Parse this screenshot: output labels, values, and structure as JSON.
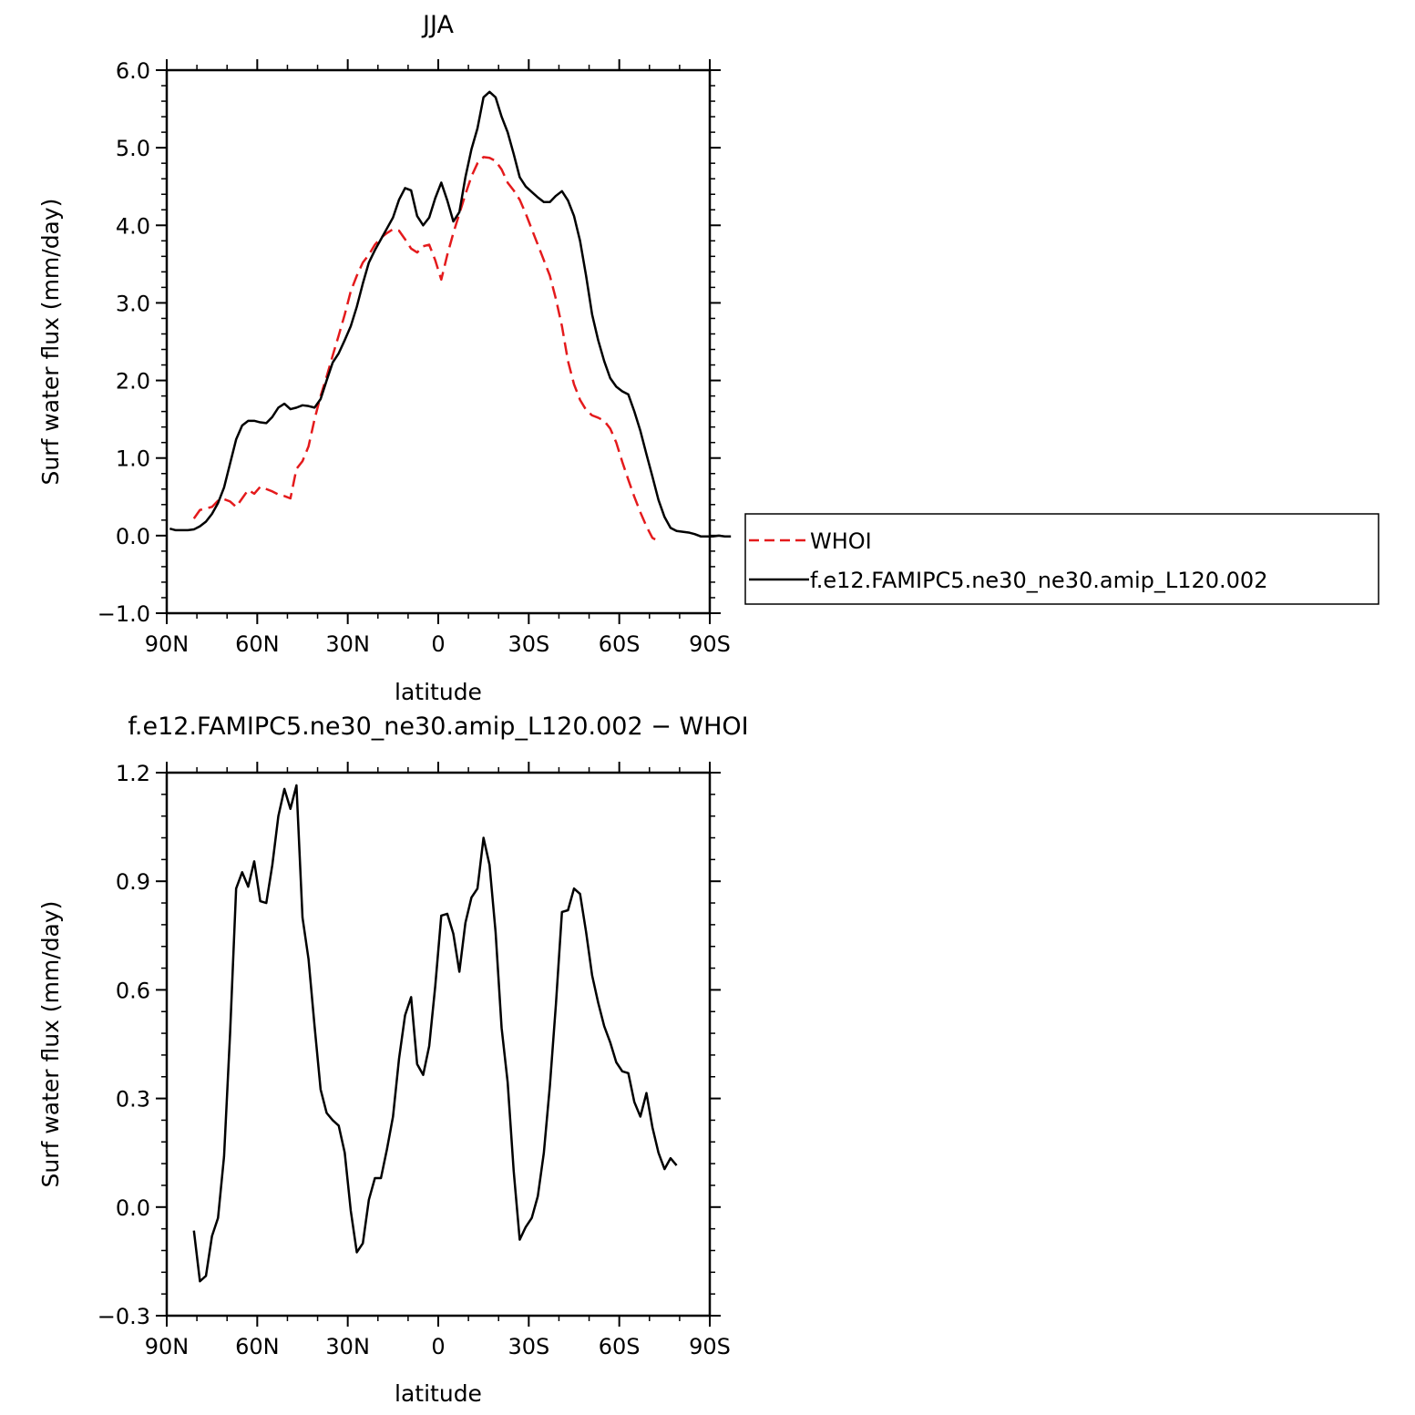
{
  "chart_data": [
    {
      "type": "line",
      "title": "JJA",
      "xlabel": "latitude",
      "ylabel": "Surf water flux (mm/day)",
      "xlim": [
        90,
        -90
      ],
      "ylim": [
        -1.0,
        6.0
      ],
      "xticks": [
        90,
        60,
        30,
        0,
        -30,
        -60,
        -90
      ],
      "xtick_labels": [
        "90N",
        "60N",
        "30N",
        "0",
        "30S",
        "60S",
        "90S"
      ],
      "yticks": [
        -1.0,
        0.0,
        1.0,
        2.0,
        3.0,
        4.0,
        5.0,
        6.0
      ],
      "ytick_labels": [
        "−1.0",
        "0.0",
        "1.0",
        "2.0",
        "3.0",
        "4.0",
        "5.0",
        "6.0"
      ],
      "legend_position": "right",
      "series": [
        {
          "name": "WHOI",
          "color": "#e41a1c",
          "dash": "dashed",
          "points": [
            [
              81,
              0.22
            ],
            [
              79,
              0.33
            ],
            [
              77,
              0.35
            ],
            [
              75,
              0.37
            ],
            [
              73,
              0.45
            ],
            [
              71,
              0.47
            ],
            [
              69,
              0.44
            ],
            [
              67,
              0.37
            ],
            [
              65,
              0.48
            ],
            [
              63,
              0.59
            ],
            [
              61,
              0.54
            ],
            [
              59,
              0.63
            ],
            [
              57,
              0.6
            ],
            [
              55,
              0.57
            ],
            [
              53,
              0.53
            ],
            [
              51,
              0.51
            ],
            [
              49,
              0.48
            ],
            [
              47,
              0.86
            ],
            [
              45,
              0.96
            ],
            [
              43,
              1.15
            ],
            [
              41,
              1.5
            ],
            [
              39,
              1.8
            ],
            [
              37,
              2.05
            ],
            [
              35,
              2.32
            ],
            [
              33,
              2.58
            ],
            [
              31,
              2.85
            ],
            [
              29,
              3.15
            ],
            [
              27,
              3.35
            ],
            [
              25,
              3.52
            ],
            [
              23,
              3.62
            ],
            [
              21,
              3.75
            ],
            [
              19,
              3.84
            ],
            [
              17,
              3.9
            ],
            [
              15,
              3.95
            ],
            [
              13,
              3.93
            ],
            [
              11,
              3.82
            ],
            [
              9,
              3.7
            ],
            [
              7,
              3.65
            ],
            [
              5,
              3.73
            ],
            [
              3,
              3.75
            ],
            [
              1,
              3.55
            ],
            [
              -1,
              3.3
            ],
            [
              -3,
              3.62
            ],
            [
              -5,
              3.9
            ],
            [
              -7,
              4.15
            ],
            [
              -9,
              4.4
            ],
            [
              -11,
              4.63
            ],
            [
              -13,
              4.8
            ],
            [
              -15,
              4.88
            ],
            [
              -17,
              4.87
            ],
            [
              -19,
              4.83
            ],
            [
              -21,
              4.72
            ],
            [
              -23,
              4.55
            ],
            [
              -25,
              4.45
            ],
            [
              -27,
              4.33
            ],
            [
              -29,
              4.15
            ],
            [
              -31,
              3.95
            ],
            [
              -33,
              3.75
            ],
            [
              -35,
              3.55
            ],
            [
              -37,
              3.35
            ],
            [
              -39,
              3.05
            ],
            [
              -41,
              2.7
            ],
            [
              -43,
              2.25
            ],
            [
              -45,
              1.95
            ],
            [
              -47,
              1.75
            ],
            [
              -49,
              1.62
            ],
            [
              -51,
              1.55
            ],
            [
              -53,
              1.52
            ],
            [
              -55,
              1.48
            ],
            [
              -57,
              1.38
            ],
            [
              -59,
              1.2
            ],
            [
              -61,
              0.95
            ],
            [
              -63,
              0.72
            ],
            [
              -65,
              0.5
            ],
            [
              -67,
              0.3
            ],
            [
              -69,
              0.12
            ],
            [
              -71,
              -0.03
            ],
            [
              -73,
              -0.07
            ]
          ]
        },
        {
          "name": "f.e12.FAMIPC5.ne30_ne30.amip_L120.002",
          "color": "#000000",
          "dash": "solid",
          "points": [
            [
              89,
              0.09
            ],
            [
              87,
              0.07
            ],
            [
              85,
              0.07
            ],
            [
              83,
              0.07
            ],
            [
              81,
              0.08
            ],
            [
              79,
              0.12
            ],
            [
              77,
              0.18
            ],
            [
              75,
              0.28
            ],
            [
              73,
              0.42
            ],
            [
              71,
              0.62
            ],
            [
              69,
              0.93
            ],
            [
              67,
              1.24
            ],
            [
              65,
              1.42
            ],
            [
              63,
              1.48
            ],
            [
              61,
              1.48
            ],
            [
              59,
              1.46
            ],
            [
              57,
              1.45
            ],
            [
              55,
              1.53
            ],
            [
              53,
              1.65
            ],
            [
              51,
              1.7
            ],
            [
              49,
              1.63
            ],
            [
              47,
              1.65
            ],
            [
              45,
              1.68
            ],
            [
              43,
              1.67
            ],
            [
              41,
              1.65
            ],
            [
              39,
              1.76
            ],
            [
              37,
              2.0
            ],
            [
              35,
              2.23
            ],
            [
              33,
              2.35
            ],
            [
              31,
              2.52
            ],
            [
              29,
              2.7
            ],
            [
              27,
              2.95
            ],
            [
              25,
              3.25
            ],
            [
              23,
              3.52
            ],
            [
              21,
              3.68
            ],
            [
              19,
              3.82
            ],
            [
              17,
              3.96
            ],
            [
              15,
              4.1
            ],
            [
              13,
              4.33
            ],
            [
              11,
              4.48
            ],
            [
              9,
              4.45
            ],
            [
              7,
              4.12
            ],
            [
              5,
              4.0
            ],
            [
              3,
              4.1
            ],
            [
              1,
              4.35
            ],
            [
              -1,
              4.55
            ],
            [
              -3,
              4.32
            ],
            [
              -5,
              4.05
            ],
            [
              -7,
              4.17
            ],
            [
              -9,
              4.62
            ],
            [
              -11,
              4.98
            ],
            [
              -13,
              5.25
            ],
            [
              -15,
              5.65
            ],
            [
              -17,
              5.72
            ],
            [
              -19,
              5.65
            ],
            [
              -21,
              5.4
            ],
            [
              -23,
              5.2
            ],
            [
              -25,
              4.92
            ],
            [
              -27,
              4.62
            ],
            [
              -29,
              4.5
            ],
            [
              -31,
              4.43
            ],
            [
              -33,
              4.36
            ],
            [
              -35,
              4.3
            ],
            [
              -37,
              4.3
            ],
            [
              -39,
              4.38
            ],
            [
              -41,
              4.44
            ],
            [
              -43,
              4.32
            ],
            [
              -45,
              4.12
            ],
            [
              -47,
              3.8
            ],
            [
              -49,
              3.35
            ],
            [
              -51,
              2.85
            ],
            [
              -53,
              2.52
            ],
            [
              -55,
              2.25
            ],
            [
              -57,
              2.03
            ],
            [
              -59,
              1.92
            ],
            [
              -61,
              1.86
            ],
            [
              -63,
              1.82
            ],
            [
              -65,
              1.6
            ],
            [
              -67,
              1.35
            ],
            [
              -69,
              1.05
            ],
            [
              -71,
              0.76
            ],
            [
              -73,
              0.46
            ],
            [
              -75,
              0.24
            ],
            [
              -77,
              0.1
            ],
            [
              -79,
              0.06
            ],
            [
              -81,
              0.05
            ],
            [
              -83,
              0.04
            ],
            [
              -85,
              0.02
            ],
            [
              -87,
              -0.01
            ],
            [
              -89,
              -0.01
            ],
            [
              -91,
              -0.01
            ],
            [
              -93,
              0.0
            ],
            [
              -95,
              -0.01
            ],
            [
              -97,
              -0.01
            ]
          ]
        }
      ]
    },
    {
      "type": "line",
      "title": "f.e12.FAMIPC5.ne30_ne30.amip_L120.002 − WHOI",
      "xlabel": "latitude",
      "ylabel": "Surf water flux (mm/day)",
      "xlim": [
        90,
        -90
      ],
      "ylim": [
        -0.3,
        1.2
      ],
      "xticks": [
        90,
        60,
        30,
        0,
        -30,
        -60,
        -90
      ],
      "xtick_labels": [
        "90N",
        "60N",
        "30N",
        "0",
        "30S",
        "60S",
        "90S"
      ],
      "yticks": [
        -0.3,
        0.0,
        0.3,
        0.6,
        0.9,
        1.2
      ],
      "ytick_labels": [
        "−0.3",
        "0.0",
        "0.3",
        "0.6",
        "0.9",
        "1.2"
      ],
      "series": [
        {
          "color": "#000000",
          "dash": "solid",
          "points": [
            [
              81,
              -0.065
            ],
            [
              79,
              -0.205
            ],
            [
              77,
              -0.19
            ],
            [
              75,
              -0.08
            ],
            [
              73,
              -0.03
            ],
            [
              71,
              0.14
            ],
            [
              69,
              0.48
            ],
            [
              67,
              0.88
            ],
            [
              65,
              0.925
            ],
            [
              63,
              0.885
            ],
            [
              61,
              0.955
            ],
            [
              59,
              0.845
            ],
            [
              57,
              0.84
            ],
            [
              55,
              0.945
            ],
            [
              53,
              1.08
            ],
            [
              51,
              1.155
            ],
            [
              49,
              1.1
            ],
            [
              47,
              1.165
            ],
            [
              45,
              0.8
            ],
            [
              43,
              0.685
            ],
            [
              41,
              0.5
            ],
            [
              39,
              0.325
            ],
            [
              37,
              0.26
            ],
            [
              35,
              0.24
            ],
            [
              33,
              0.225
            ],
            [
              31,
              0.15
            ],
            [
              29,
              -0.01
            ],
            [
              27,
              -0.125
            ],
            [
              25,
              -0.1
            ],
            [
              23,
              0.02
            ],
            [
              21,
              0.08
            ],
            [
              19,
              0.08
            ],
            [
              17,
              0.16
            ],
            [
              15,
              0.25
            ],
            [
              13,
              0.41
            ],
            [
              11,
              0.53
            ],
            [
              9,
              0.58
            ],
            [
              7,
              0.395
            ],
            [
              5,
              0.365
            ],
            [
              3,
              0.445
            ],
            [
              1,
              0.61
            ],
            [
              -1,
              0.805
            ],
            [
              -3,
              0.81
            ],
            [
              -5,
              0.755
            ],
            [
              -7,
              0.65
            ],
            [
              -9,
              0.785
            ],
            [
              -11,
              0.855
            ],
            [
              -13,
              0.88
            ],
            [
              -15,
              1.02
            ],
            [
              -17,
              0.945
            ],
            [
              -19,
              0.76
            ],
            [
              -21,
              0.495
            ],
            [
              -23,
              0.345
            ],
            [
              -25,
              0.1
            ],
            [
              -27,
              -0.09
            ],
            [
              -29,
              -0.055
            ],
            [
              -31,
              -0.03
            ],
            [
              -33,
              0.03
            ],
            [
              -35,
              0.15
            ],
            [
              -37,
              0.335
            ],
            [
              -39,
              0.56
            ],
            [
              -41,
              0.815
            ],
            [
              -43,
              0.82
            ],
            [
              -45,
              0.88
            ],
            [
              -47,
              0.865
            ],
            [
              -49,
              0.76
            ],
            [
              -51,
              0.64
            ],
            [
              -53,
              0.565
            ],
            [
              -55,
              0.5
            ],
            [
              -57,
              0.455
            ],
            [
              -59,
              0.4
            ],
            [
              -61,
              0.375
            ],
            [
              -63,
              0.37
            ],
            [
              -65,
              0.29
            ],
            [
              -67,
              0.25
            ],
            [
              -69,
              0.315
            ],
            [
              -71,
              0.22
            ],
            [
              -73,
              0.15
            ],
            [
              -75,
              0.105
            ],
            [
              -77,
              0.135
            ],
            [
              -79,
              0.115
            ]
          ]
        }
      ]
    }
  ]
}
